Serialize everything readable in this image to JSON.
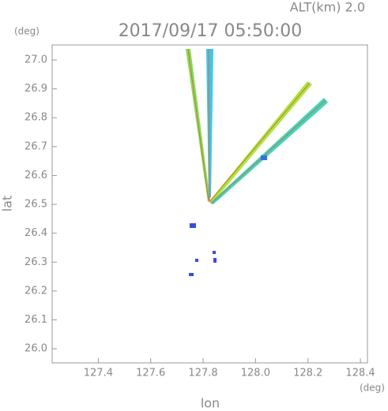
{
  "chart_data": {
    "type": "radar-image",
    "title": "2017/09/17 05:50:00",
    "subtitle": "ALT(km) 2.0",
    "x_label": "lon",
    "y_label": "lat",
    "x_unit": "(deg)",
    "y_unit": "(deg)",
    "xlim": [
      127.224,
      128.427
    ],
    "ylim": [
      25.951,
      27.052
    ],
    "xticks": [
      127.4,
      127.6,
      127.8,
      {
        "value": 128.0,
        "label": "128.0"
      },
      128.2,
      128.4
    ],
    "yticks": [
      {
        "value": 26.0,
        "label": "26.0"
      },
      26.1,
      26.2,
      26.3,
      26.4,
      26.5,
      26.6,
      26.7,
      26.8,
      26.9,
      {
        "value": 27.0,
        "label": "27.0"
      }
    ]
  }
}
